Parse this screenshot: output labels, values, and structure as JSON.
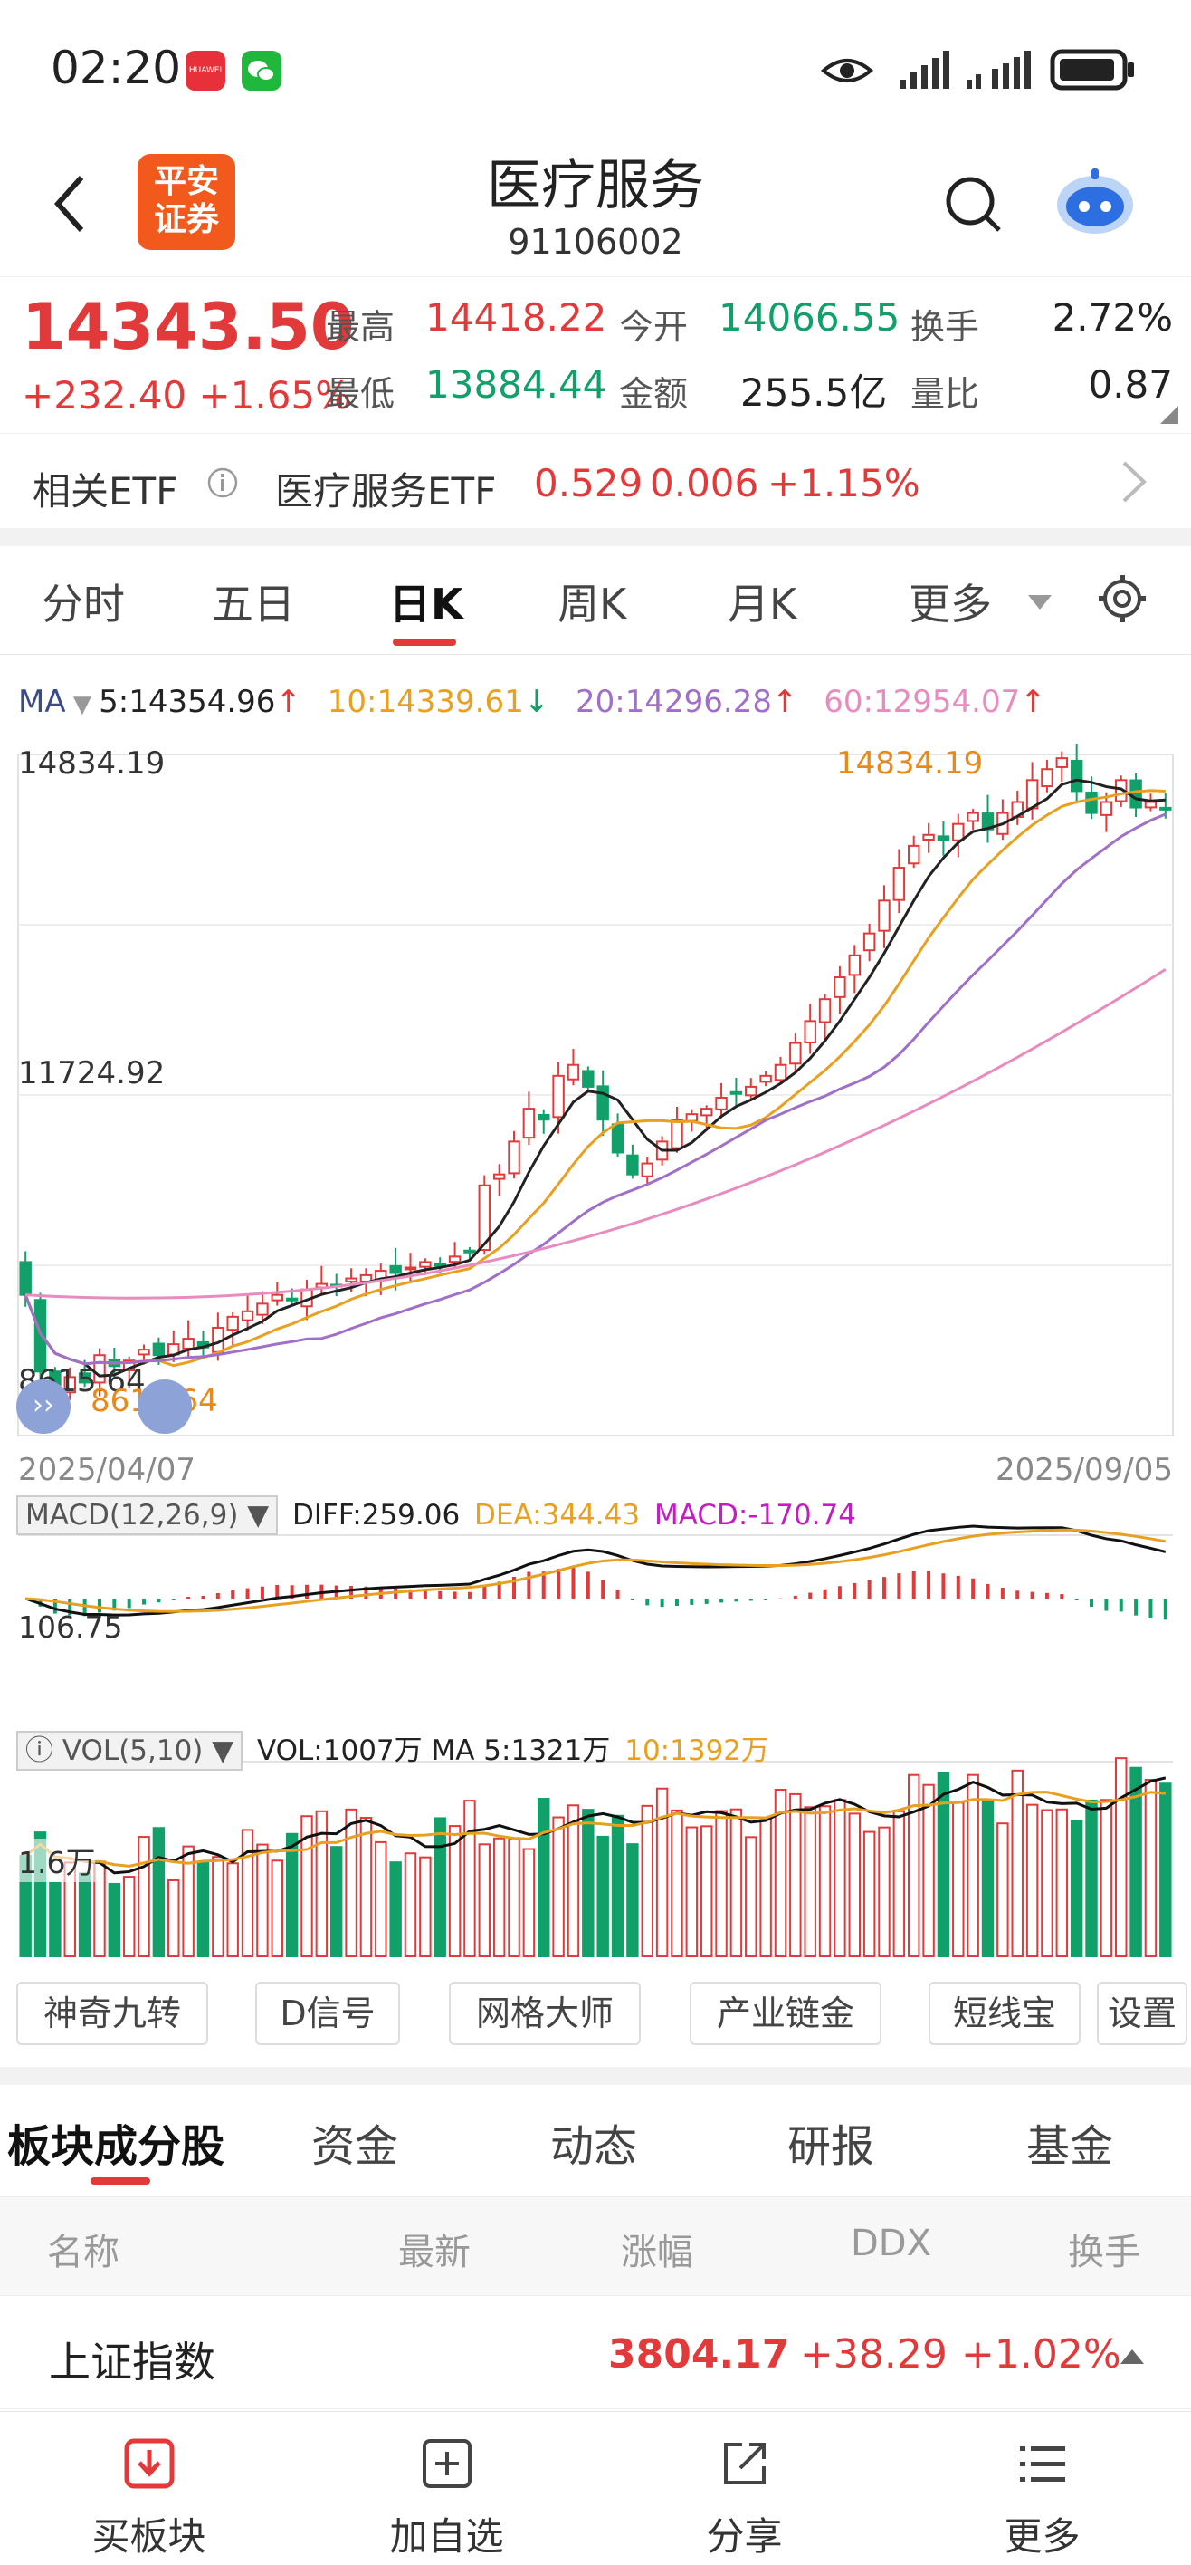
{
  "status_bar": {
    "time": "02:20",
    "apps": [
      "huawei-store-icon",
      "wechat-icon"
    ],
    "huawei_label": "HUAWEI"
  },
  "header": {
    "title": "医疗服务",
    "code": "91106002",
    "logo_lines": [
      "平安",
      "证券"
    ]
  },
  "quote": {
    "price": "14343.50",
    "change": "+232.40",
    "change_pct": "+1.65%",
    "stats": [
      {
        "label": "最高",
        "value": "14418.22",
        "color": "red"
      },
      {
        "label": "今开",
        "value": "14066.55",
        "color": "green"
      },
      {
        "label": "换手",
        "value": "2.72%",
        "color": "dark"
      },
      {
        "label": "最低",
        "value": "13884.44",
        "color": "green"
      },
      {
        "label": "金额",
        "value": "255.5亿",
        "color": "dark"
      },
      {
        "label": "量比",
        "value": "0.87",
        "color": "dark"
      }
    ]
  },
  "etf": {
    "label": "相关ETF",
    "name": "医疗服务ETF",
    "price": "0.529",
    "change": "0.006",
    "pct": "+1.15%"
  },
  "tabs": [
    "分时",
    "五日",
    "日K",
    "周K",
    "月K",
    "更多"
  ],
  "active_tab": "日K",
  "ma_legend": {
    "label": "MA",
    "ma5": "5:14354.96",
    "ma10": "10:14339.61",
    "ma20": "20:14296.28",
    "ma60": "60:12954.07",
    "arrows": {
      "ma5": "↑",
      "ma10": "↓",
      "ma20": "↑",
      "ma60": "↑"
    }
  },
  "colors": {
    "red": "#e23a3a",
    "green": "#12a06a",
    "ma5": "#222222",
    "ma10": "#e8a020",
    "ma20": "#a070c8",
    "ma60": "#e88cc0",
    "accent": "#e23a3a"
  },
  "chart_data": {
    "type": "candlestick",
    "x_start": "2025/04/07",
    "x_end": "2025/09/05",
    "y_labels": {
      "high": "14834.19",
      "mid": "11724.92",
      "low": "8615.64"
    },
    "annotations": {
      "max": "14834.19",
      "min": "8615.64"
    },
    "ylim": [
      8615.64,
      14834.19
    ],
    "close_series": [
      9900,
      9200,
      9000,
      9150,
      9100,
      9350,
      9250,
      9300,
      9400,
      9350,
      9450,
      9500,
      9420,
      9600,
      9700,
      9750,
      9820,
      9900,
      9850,
      9950,
      10000,
      9980,
      10050,
      10080,
      10120,
      10100,
      10150,
      10200,
      10180,
      10250,
      10300,
      10900,
      11000,
      11300,
      11600,
      11500,
      11900,
      12000,
      11800,
      11500,
      11200,
      11000,
      11100,
      11300,
      11500,
      11550,
      11600,
      11700,
      11750,
      11800,
      11900,
      12000,
      12200,
      12400,
      12600,
      12800,
      13000,
      13200,
      13500,
      13800,
      14000,
      14100,
      14050,
      14200,
      14300,
      14150,
      14300,
      14400,
      14600,
      14700,
      14800,
      14500,
      14300,
      14400,
      14600,
      14350,
      14400,
      14343.5
    ],
    "macd": {
      "label": "MACD(12,26,9)",
      "diff": "DIFF:259.06",
      "dea": "DEA:344.43",
      "macd": "MACD:-170.74",
      "axis_label": "106.75"
    },
    "vol": {
      "label": "VOL(5,10)",
      "vol": "VOL:1007万",
      "ma5": "MA 5:1321万",
      "ma10": "10:1392万",
      "axis_label": "1.6万"
    }
  },
  "features": [
    "神奇九转",
    "D信号",
    "网格大师",
    "产业链金",
    "短线宝",
    "设置"
  ],
  "bottom_tabs": [
    "板块成分股",
    "资金",
    "动态",
    "研报",
    "基金"
  ],
  "columns": [
    "名称",
    "最新",
    "涨幅",
    "DDX",
    "换手"
  ],
  "row": {
    "name": "上证指数",
    "price": "3804.17",
    "change": "+38.29",
    "pct": "+1.02%"
  },
  "nav": [
    "买板块",
    "加自选",
    "分享",
    "更多"
  ]
}
